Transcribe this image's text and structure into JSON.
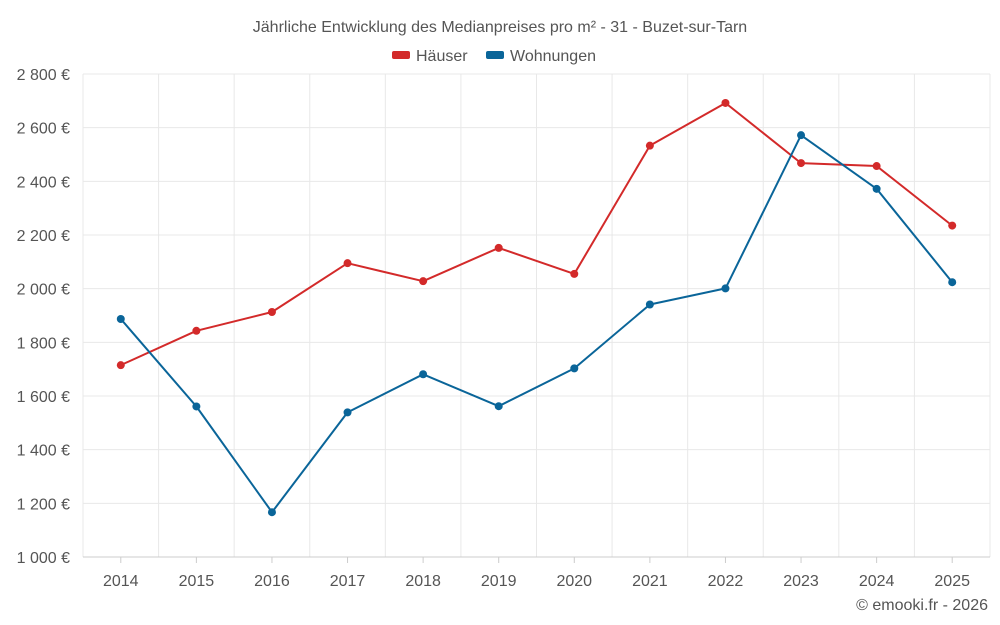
{
  "chart_data": {
    "type": "line",
    "title": "Jährliche Entwicklung des Medianpreises pro m² - 31 - Buzet-sur-Tarn",
    "categories": [
      "2014",
      "2015",
      "2016",
      "2017",
      "2018",
      "2019",
      "2020",
      "2021",
      "2022",
      "2023",
      "2024",
      "2025"
    ],
    "series": [
      {
        "name": "Häuser",
        "color": "#d32a2a",
        "values": [
          1715,
          1843,
          1913,
          2095,
          2028,
          2152,
          2055,
          2533,
          2692,
          2468,
          2457,
          2235
        ]
      },
      {
        "name": "Wohnungen",
        "color": "#0a6599",
        "values": [
          1887,
          1561,
          1167,
          1539,
          1681,
          1562,
          1703,
          1941,
          2001,
          2572,
          2372,
          2024
        ]
      }
    ],
    "ylim": [
      1000,
      2800
    ],
    "yticks": [
      1000,
      1200,
      1400,
      1600,
      1800,
      2000,
      2200,
      2400,
      2600,
      2800
    ],
    "ytick_labels": [
      "1 000 €",
      "1 200 €",
      "1 400 €",
      "1 600 €",
      "1 800 €",
      "2 000 €",
      "2 200 €",
      "2 400 €",
      "2 600 €",
      "2 800 €"
    ],
    "legend_position": "top-center",
    "grid": true,
    "xlabel": "",
    "ylabel": ""
  },
  "credit": "© emooki.fr - 2026"
}
